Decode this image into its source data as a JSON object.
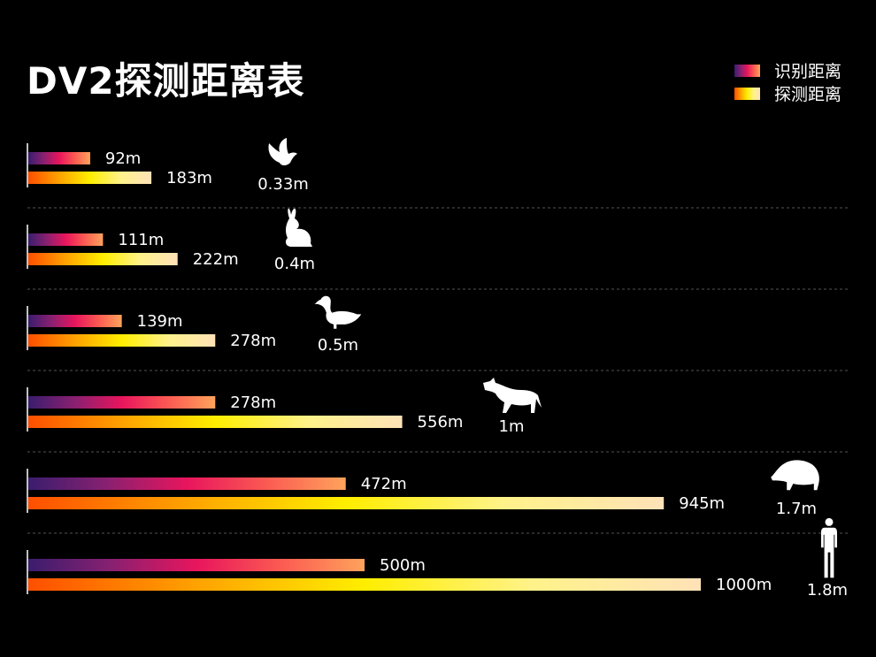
{
  "chart_data": {
    "type": "bar",
    "title": "DV2探测距离表",
    "series": [
      {
        "name": "识别距离",
        "values": [
          92,
          111,
          139,
          278,
          472,
          500
        ],
        "labels": [
          "92m",
          "111m",
          "139m",
          "278m",
          "472m",
          "500m"
        ]
      },
      {
        "name": "探测距离",
        "values": [
          183,
          222,
          278,
          556,
          945,
          1000
        ],
        "labels": [
          "183m",
          "222m",
          "278m",
          "556m",
          "945m",
          "1000m"
        ]
      }
    ],
    "categories": [
      "0.33m",
      "0.4m",
      "0.5m",
      "1m",
      "1.7m",
      "1.8m"
    ],
    "targets": [
      "bird-icon",
      "rabbit-icon",
      "duck-icon",
      "wolf-icon",
      "boar-icon",
      "human-icon"
    ],
    "legend": "top-right",
    "grid": false
  },
  "colors": {
    "background": "#000000",
    "recognition_gradient": [
      "#3a1d6e",
      "#8a2070",
      "#e8155d",
      "#fb5a52",
      "#ffa35c"
    ],
    "detection_gradient": [
      "#ff4f00",
      "#ffa200",
      "#ffee00",
      "#fff28a",
      "#ffe2b8"
    ],
    "divider": "#555555"
  }
}
